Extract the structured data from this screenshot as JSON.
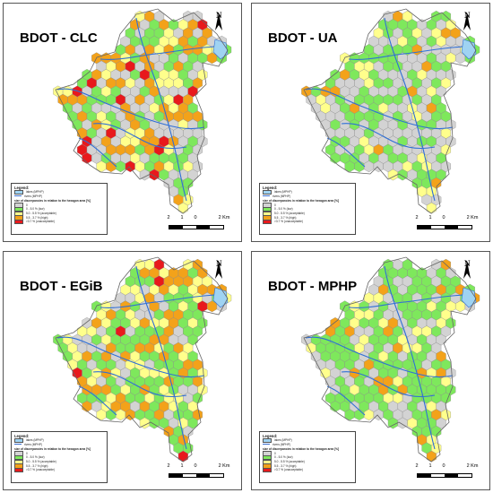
{
  "panels": [
    {
      "title": "BDOT - CLC",
      "seed": 11,
      "probs": [
        0.3,
        0.26,
        0.14,
        0.22,
        0.08
      ],
      "north": "N",
      "scale": {
        "labels": [
          "2",
          "1",
          "0",
          "2 Km"
        ]
      },
      "legend": {
        "title": "Legend:",
        "items": [
          {
            "type": "line",
            "label": "lakes (MPHP)"
          },
          {
            "type": "line",
            "label": "rivers (MPHP)"
          }
        ],
        "heading": "size of discrepancies in relation to the hexagon area [%]",
        "classes": [
          {
            "color": "#d3d3d3",
            "label": "0"
          },
          {
            "color": "#7ee85c",
            "label": "0 - 5.0 % (low)"
          },
          {
            "color": "#ffff8c",
            "label": "5.0 - 5.5 % (acceptable)"
          },
          {
            "color": "#f3a21a",
            "label": "5.5 - 3.7 % (high)"
          },
          {
            "color": "#e8191c",
            "label": ">3.7 % (unacceptable)"
          }
        ]
      }
    },
    {
      "title": "BDOT - UA",
      "seed": 23,
      "probs": [
        0.42,
        0.36,
        0.14,
        0.08,
        0.0
      ],
      "north": "N",
      "scale": {
        "labels": [
          "2",
          "1",
          "0",
          "2 Km"
        ]
      },
      "legend": {
        "title": "Legend:",
        "items": [
          {
            "type": "line",
            "label": "lakes (MPHP)"
          },
          {
            "type": "line",
            "label": "rivers (MPHP)"
          }
        ],
        "heading": "size of discrepancies in relation to the hexagon area [%]",
        "classes": [
          {
            "color": "#d3d3d3",
            "label": "0"
          },
          {
            "color": "#7ee85c",
            "label": "0 - 5.0 % (low)"
          },
          {
            "color": "#ffff8c",
            "label": "5.0 - 5.5 % (acceptable)"
          },
          {
            "color": "#f3a21a",
            "label": "5.5 - 3.7 % (high)"
          },
          {
            "color": "#e8191c",
            "label": ">3.7 % (unacceptable)"
          }
        ]
      }
    },
    {
      "title": "BDOT - EGiB",
      "seed": 37,
      "probs": [
        0.16,
        0.36,
        0.22,
        0.22,
        0.04
      ],
      "north": "N",
      "scale": {
        "labels": [
          "2",
          "1",
          "0",
          "2 Km"
        ]
      },
      "legend": {
        "title": "Legend:",
        "items": [
          {
            "type": "line",
            "label": "lakes (MPHP)"
          },
          {
            "type": "line",
            "label": "rivers (MPHP)"
          }
        ],
        "heading": "size of discrepancies in relation to the hexagon area [%]",
        "classes": [
          {
            "color": "#d3d3d3",
            "label": "0"
          },
          {
            "color": "#7ee85c",
            "label": "0 - 5.0 % (low)"
          },
          {
            "color": "#ffff8c",
            "label": "5.0 - 5.5 % (acceptable)"
          },
          {
            "color": "#f3a21a",
            "label": "5.5 - 3.7 % (high)"
          },
          {
            "color": "#e8191c",
            "label": ">3.7 % (unacceptable)"
          }
        ]
      }
    },
    {
      "title": "BDOT - MPHP",
      "seed": 53,
      "probs": [
        0.28,
        0.48,
        0.14,
        0.1,
        0.0
      ],
      "north": "N",
      "scale": {
        "labels": [
          "2",
          "1",
          "0",
          "2 Km"
        ]
      },
      "legend": {
        "title": "Legend:",
        "items": [
          {
            "type": "line",
            "label": "lakes (MPHP)"
          },
          {
            "type": "line",
            "label": "rivers (MPHP)"
          }
        ],
        "heading": "size of discrepancies in relation to the hexagon area [%]",
        "classes": [
          {
            "color": "#d3d3d3",
            "label": "0"
          },
          {
            "color": "#7ee85c",
            "label": "0 - 5.0 % (low)"
          },
          {
            "color": "#ffff8c",
            "label": "5.0 - 5.5 % (acceptable)"
          },
          {
            "color": "#f3a21a",
            "label": "5.5 - 3.7 % (high)"
          },
          {
            "color": "#e8191c",
            "label": ">3.7 % (unacceptable)"
          }
        ]
      }
    }
  ],
  "colors": {
    "river": "#2f6fd6",
    "lake": "#9fd3f2",
    "outline": "#666666"
  }
}
